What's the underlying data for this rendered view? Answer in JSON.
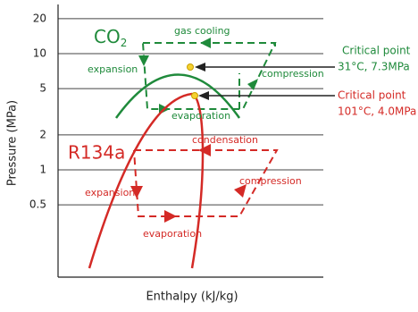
{
  "y_axis": {
    "label": "Pressure (MPa)",
    "ticks": [
      20,
      10,
      5,
      2,
      1,
      0.5
    ]
  },
  "x_axis": {
    "label": "Enthalpy (kJ/kg)"
  },
  "co2": {
    "name": "CO",
    "subscript": "2",
    "gas_cooling": "gas cooling",
    "expansion": "expansion",
    "compression": "compression",
    "evaporation": "evaporation",
    "critical_point": {
      "title": "Critical point",
      "detail": "31°C, 7.3MPa"
    }
  },
  "r134a": {
    "name": "R134a",
    "condensation": "condensation",
    "expansion": "expansion",
    "compression": "compression",
    "evaporation": "evaporation",
    "critical_point": {
      "title": "Critical point",
      "detail": "101°C, 4.0MPa"
    }
  }
}
